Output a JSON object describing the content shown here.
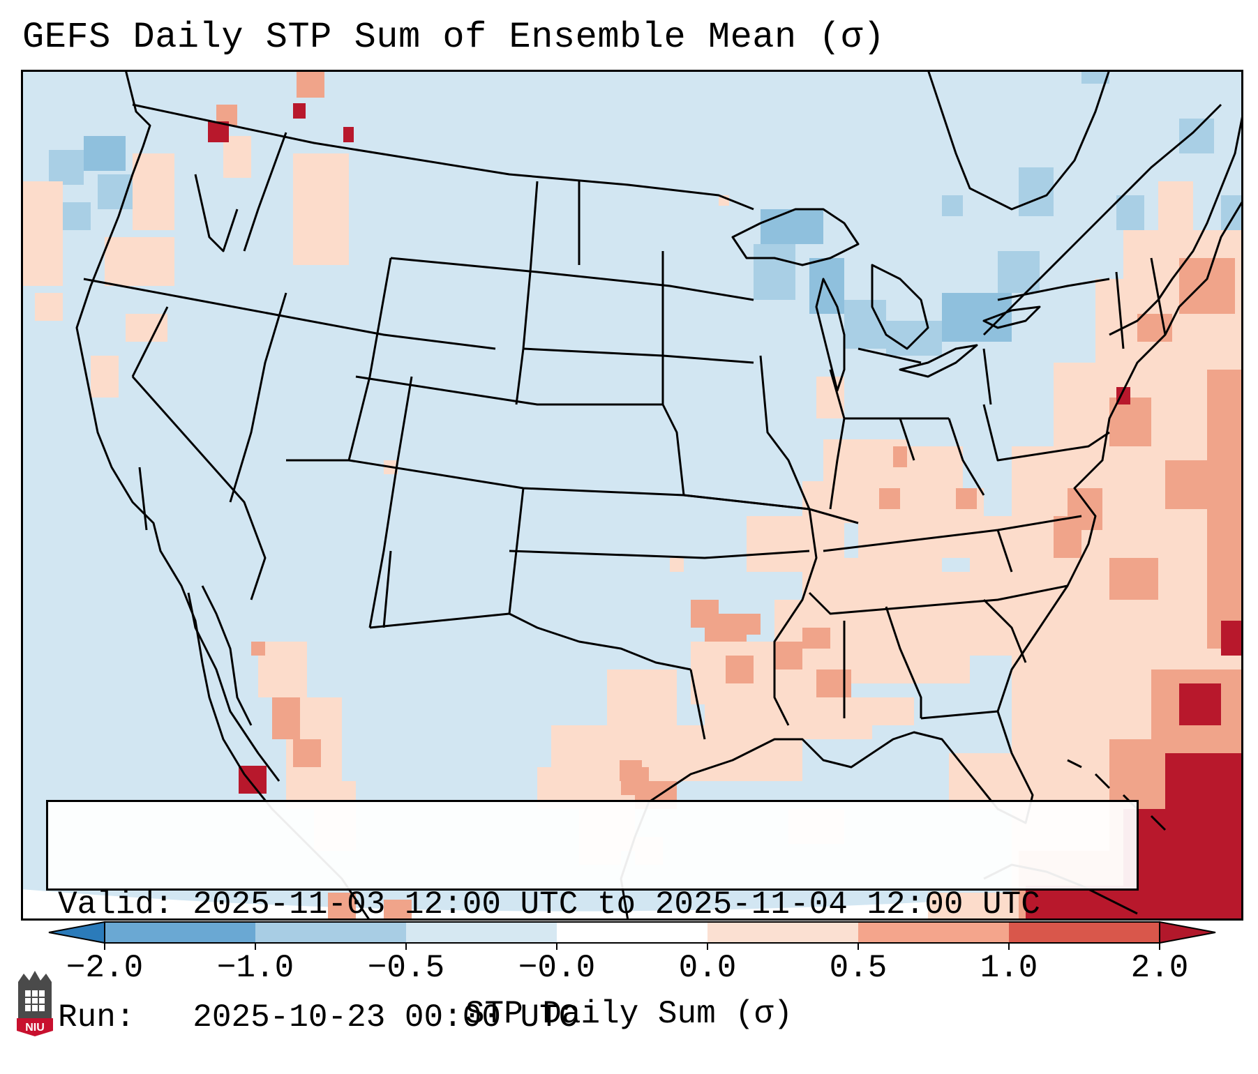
{
  "title": "GEFS Daily STP Sum of Ensemble Mean (σ)",
  "info": {
    "valid_label": "Valid:",
    "valid_value": "2025-11-03 12:00 UTC to 2025-11-04 12:00 UTC",
    "run_label": "Run:",
    "run_value": "2025-10-23 00:00 UTC"
  },
  "colorbar": {
    "label": "STP Daily Sum (σ)",
    "ticks": [
      "−2.0",
      "−1.0",
      "−0.5",
      "−0.0",
      "0.0",
      "0.5",
      "1.0",
      "2.0"
    ],
    "colors": [
      "#2b7bba",
      "#6aa8d3",
      "#a8cde4",
      "#d6e8f2",
      "#fbe0d2",
      "#f4a58c",
      "#d9574b",
      "#b2182b"
    ],
    "extend": "both"
  },
  "map": {
    "projection": "Lambert conformal, contiguous United States",
    "field_colors": {
      "background": "#d2e6f2",
      "light_blue": "#a9cfe5",
      "mid_blue": "#8fc0dd",
      "light_red": "#fcdccb",
      "mid_red": "#f0a48a",
      "red": "#e06f5a",
      "dark_red": "#b8182c"
    }
  },
  "logo": {
    "text": "NIU",
    "colors": {
      "top": "#4a4a4a",
      "bottom": "#c8102e"
    }
  }
}
